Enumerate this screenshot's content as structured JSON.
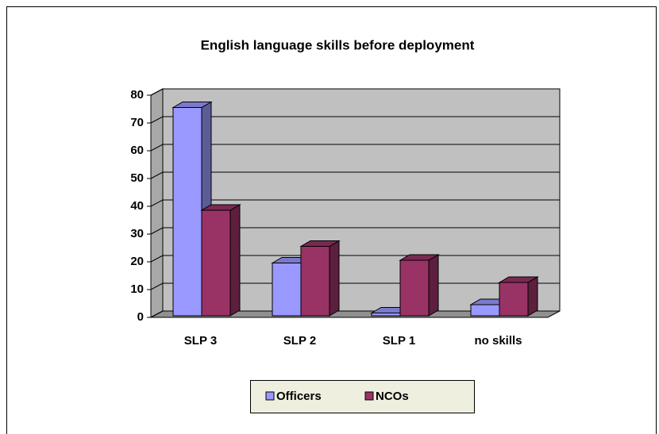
{
  "chart_data": {
    "type": "bar3d",
    "title": "English language skills before deployment",
    "categories": [
      "SLP 3",
      "SLP 2",
      "SLP 1",
      "no skills"
    ],
    "series": [
      {
        "name": "Officers",
        "color": "#9999ff",
        "values": [
          75,
          19,
          1,
          4
        ]
      },
      {
        "name": "NCOs",
        "color": "#993366",
        "values": [
          38,
          25,
          20,
          12
        ]
      }
    ],
    "ylim": [
      0,
      80
    ],
    "yticks": [
      0,
      10,
      20,
      30,
      40,
      50,
      60,
      70,
      80
    ],
    "grid": true,
    "legend": "bottom"
  }
}
